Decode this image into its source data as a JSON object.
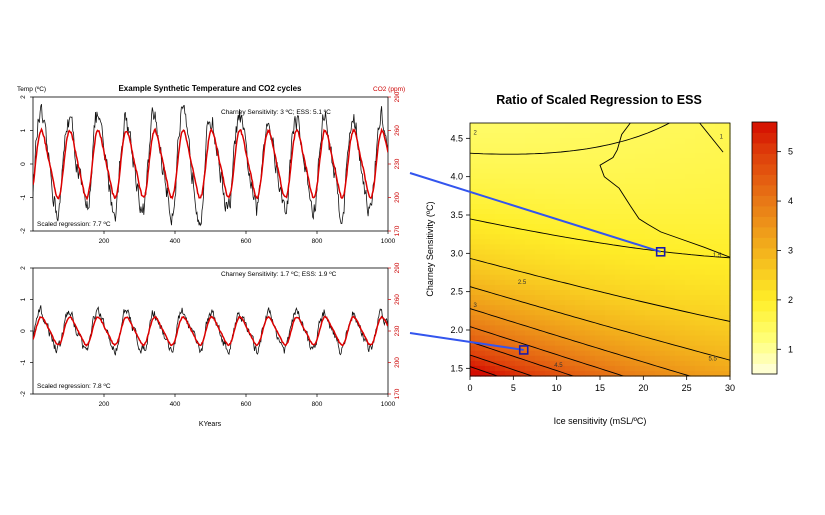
{
  "colors": {
    "temp_line": "#111111",
    "co2_line": "#dd0000",
    "right_axis": "#cc0000",
    "connector": "#3355ee",
    "marker": "#1a1aaa",
    "contour": "#000000"
  },
  "panel_top": {
    "title": "Example Synthetic Temperature and CO2 cycles",
    "left_axis_label": "Temp (ºC)",
    "right_axis_label": "CO2 (ppm)",
    "annotation": "Charney Sensitivity: 3 ºC; ESS: 5.1 ºC",
    "scaled_regression": "Scaled regression: 7.7 ºC"
  },
  "panel_bottom": {
    "annotation": "Charney Sensitivity: 1.7 ºC; ESS: 1.9 ºC",
    "scaled_regression": "Scaled regression: 7.8 ºC",
    "xlabel": "KYears"
  },
  "contour_panel": {
    "title": "Ratio of Scaled Regression to ESS",
    "xlabel": "Ice sensitivity (mSL/ºC)",
    "ylabel": "Charney Sensitivity (ºC)"
  },
  "chart_data": [
    {
      "type": "line",
      "title": "Example Synthetic Temperature and CO2 cycles",
      "xlabel": "",
      "ylabel": "Temp (ºC)",
      "y2label": "CO2 (ppm)",
      "xlim": [
        0,
        1000
      ],
      "x_ticks": [
        200,
        400,
        600,
        800,
        1000
      ],
      "ylim": [
        -2,
        2
      ],
      "y_ticks": [
        -2,
        -1,
        0,
        1,
        2
      ],
      "y2lim": [
        170,
        290
      ],
      "y2_ticks": [
        170,
        200,
        230,
        260,
        290
      ],
      "cycle_period_kyr": 80,
      "series": [
        {
          "role": "temperature",
          "color": "#111111",
          "amplitude": 1.3,
          "noise": 0.3
        },
        {
          "role": "co2",
          "color": "#dd0000",
          "amplitude": 0.95,
          "noise": 0.04
        }
      ]
    },
    {
      "type": "line",
      "xlabel": "KYears",
      "ylabel": "",
      "xlim": [
        0,
        1000
      ],
      "x_ticks": [
        200,
        400,
        600,
        800,
        1000
      ],
      "ylim": [
        -2,
        2
      ],
      "y_ticks": [
        -2,
        -1,
        0,
        1,
        2
      ],
      "y2lim": [
        170,
        290
      ],
      "y2_ticks": [
        170,
        200,
        230,
        260,
        290
      ],
      "cycle_period_kyr": 80,
      "series": [
        {
          "role": "temperature",
          "color": "#111111",
          "amplitude": 0.55,
          "noise": 0.15
        },
        {
          "role": "co2",
          "color": "#dd0000",
          "amplitude": 0.42,
          "noise": 0.02
        }
      ]
    },
    {
      "type": "heatmap",
      "title": "Ratio of Scaled Regression to ESS",
      "xlabel": "Ice sensitivity (mSL/ºC)",
      "ylabel": "Charney Sensitivity (ºC)",
      "xlim": [
        0,
        30
      ],
      "x_ticks": [
        0,
        5,
        10,
        15,
        20,
        25,
        30
      ],
      "ylim": [
        1.4,
        4.7
      ],
      "y_ticks": [
        1.5,
        2.0,
        2.5,
        3.0,
        3.5,
        4.0,
        4.5
      ],
      "y_tick_labels": [
        "1.5",
        "2.0",
        "2.5",
        "3.0",
        "3.5",
        "4.0",
        "4.5"
      ],
      "colorbar_ticks": [
        1,
        2,
        3,
        4,
        5
      ],
      "colorbar_range": [
        0.5,
        5.6
      ],
      "contour_labels": [
        {
          "text": "2.5",
          "x": 6.0,
          "y": 2.6
        },
        {
          "text": "3",
          "x": 0.6,
          "y": 2.3
        },
        {
          "text": "4.5",
          "x": 10.2,
          "y": 1.52
        },
        {
          "text": "5.5",
          "x": 28.0,
          "y": 1.6
        },
        {
          "text": "1.5",
          "x": 28.5,
          "y": 2.95
        },
        {
          "text": "1",
          "x": 29.0,
          "y": 4.5
        },
        {
          "text": "2",
          "x": 0.6,
          "y": 4.55
        }
      ],
      "markers": [
        {
          "x": 22.0,
          "y": 3.02
        },
        {
          "x": 6.2,
          "y": 1.74
        }
      ]
    }
  ]
}
